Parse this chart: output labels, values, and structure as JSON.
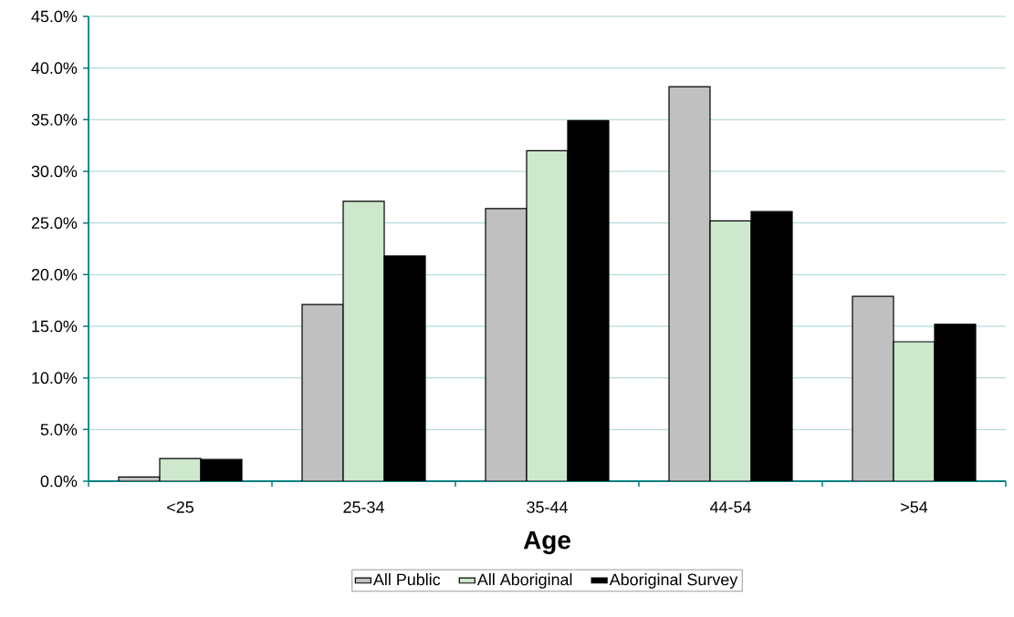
{
  "chart_data": {
    "type": "bar",
    "xlabel": "Age",
    "categories": [
      "<25",
      "25-34",
      "35-44",
      "44-54",
      ">54"
    ],
    "series": [
      {
        "name": "All Public",
        "color": "#c0c0c0",
        "values": [
          0.4,
          17.1,
          26.4,
          38.2,
          17.9
        ]
      },
      {
        "name": "All Aboriginal",
        "color": "#cde8cd",
        "values": [
          2.2,
          27.1,
          32.0,
          25.2,
          13.5
        ]
      },
      {
        "name": "Aboriginal Survey",
        "color": "#000000",
        "values": [
          2.1,
          21.8,
          34.9,
          26.1,
          15.2
        ]
      }
    ],
    "ylim": [
      0,
      45
    ],
    "yticks": [
      {
        "value": 0,
        "label": "0.0%"
      },
      {
        "value": 5,
        "label": "5.0%"
      },
      {
        "value": 10,
        "label": "10.0%"
      },
      {
        "value": 15,
        "label": "15.0%"
      },
      {
        "value": 20,
        "label": "20.0%"
      },
      {
        "value": 25,
        "label": "25.0%"
      },
      {
        "value": 30,
        "label": "30.0%"
      },
      {
        "value": 35,
        "label": "35.0%"
      },
      {
        "value": 40,
        "label": "40.0%"
      },
      {
        "value": 45,
        "label": "45.0%"
      }
    ],
    "grid": "y",
    "legend": "bottom"
  }
}
